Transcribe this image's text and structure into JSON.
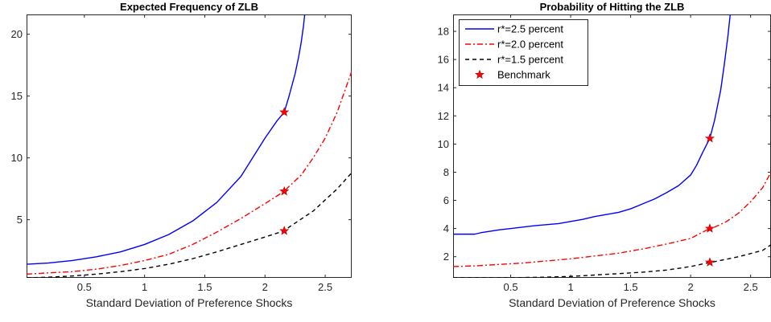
{
  "chart_data": [
    {
      "type": "line",
      "title": "Expected Frequency of ZLB",
      "xlabel": "Standard Deviation of Preference Shocks",
      "ylabel": "",
      "xlim": [
        0.02,
        2.72
      ],
      "ylim": [
        0.3,
        21.6
      ],
      "xticks": [
        0.5,
        1,
        1.5,
        2,
        2.5
      ],
      "yticks": [
        5,
        10,
        15,
        20
      ],
      "legend": null,
      "series": [
        {
          "name": "r*=2.5 percent",
          "color": "#0000ff",
          "dash": "solid",
          "x": [
            0.02,
            0.2,
            0.4,
            0.6,
            0.8,
            1.0,
            1.2,
            1.4,
            1.6,
            1.8,
            2.0,
            2.1,
            2.16,
            2.2,
            2.25,
            2.28,
            2.3,
            2.32,
            2.33
          ],
          "y": [
            1.4,
            1.5,
            1.7,
            2.0,
            2.4,
            3.0,
            3.8,
            4.9,
            6.4,
            8.5,
            11.6,
            13.0,
            13.7,
            15.0,
            16.8,
            18.2,
            19.3,
            20.7,
            21.6
          ]
        },
        {
          "name": "r*=2.0 percent",
          "color": "#ff0000",
          "dash": "dashdot",
          "x": [
            0.02,
            0.2,
            0.4,
            0.6,
            0.8,
            1.0,
            1.2,
            1.4,
            1.6,
            1.8,
            2.0,
            2.16,
            2.2,
            2.3,
            2.4,
            2.5,
            2.6,
            2.72
          ],
          "y": [
            0.6,
            0.7,
            0.8,
            1.0,
            1.3,
            1.7,
            2.2,
            3.0,
            4.0,
            5.1,
            6.3,
            7.3,
            7.7,
            8.6,
            10.0,
            11.6,
            13.7,
            17.0
          ]
        },
        {
          "name": "r*=1.5 percent",
          "color": "#000000",
          "dash": "dashed",
          "x": [
            0.02,
            0.2,
            0.4,
            0.6,
            0.8,
            1.0,
            1.2,
            1.4,
            1.6,
            1.8,
            2.0,
            2.16,
            2.2,
            2.4,
            2.6,
            2.72
          ],
          "y": [
            0.3,
            0.35,
            0.45,
            0.6,
            0.8,
            1.05,
            1.4,
            1.85,
            2.4,
            3.0,
            3.6,
            4.1,
            4.4,
            5.7,
            7.5,
            8.8
          ]
        }
      ],
      "markers": {
        "name": "Benchmark",
        "color": "#ff0000",
        "x": [
          2.16,
          2.16,
          2.16
        ],
        "y": [
          13.7,
          7.3,
          4.1
        ]
      }
    },
    {
      "type": "line",
      "title": "Probability of Hitting the ZLB",
      "xlabel": "Standard Deviation of Preference Shocks",
      "ylabel": "",
      "xlim": [
        0.02,
        2.67
      ],
      "ylim": [
        0.5,
        19.2
      ],
      "xticks": [
        0.5,
        1,
        1.5,
        2,
        2.5
      ],
      "yticks": [
        2,
        4,
        6,
        8,
        10,
        12,
        14,
        16,
        18
      ],
      "legend": "top-left",
      "series": [
        {
          "name": "r*=2.5 percent",
          "color": "#0000ff",
          "dash": "solid",
          "x": [
            0.02,
            0.2,
            0.25,
            0.4,
            0.6,
            0.7,
            0.9,
            1.0,
            1.1,
            1.2,
            1.3,
            1.4,
            1.5,
            1.6,
            1.7,
            1.8,
            1.9,
            2.0,
            2.05,
            2.1,
            2.16,
            2.2,
            2.25,
            2.28,
            2.31,
            2.33
          ],
          "y": [
            3.6,
            3.6,
            3.7,
            3.9,
            4.1,
            4.2,
            4.35,
            4.5,
            4.65,
            4.85,
            5.0,
            5.15,
            5.4,
            5.75,
            6.1,
            6.55,
            7.05,
            7.8,
            8.5,
            9.4,
            10.4,
            11.7,
            13.8,
            15.6,
            17.6,
            19.2
          ]
        },
        {
          "name": "r*=2.0 percent",
          "color": "#ff0000",
          "dash": "dashdot",
          "x": [
            0.02,
            0.2,
            0.4,
            0.6,
            0.8,
            1.0,
            1.2,
            1.4,
            1.6,
            1.8,
            2.0,
            2.16,
            2.2,
            2.3,
            2.4,
            2.5,
            2.6,
            2.67
          ],
          "y": [
            1.3,
            1.35,
            1.45,
            1.55,
            1.7,
            1.85,
            2.05,
            2.25,
            2.55,
            2.9,
            3.3,
            4.0,
            4.1,
            4.5,
            5.1,
            5.9,
            6.9,
            8.0
          ]
        },
        {
          "name": "r*=1.5 percent",
          "color": "#000000",
          "dash": "dashed",
          "x": [
            0.02,
            0.2,
            0.4,
            0.6,
            0.8,
            1.0,
            1.2,
            1.4,
            1.6,
            1.8,
            2.0,
            2.16,
            2.2,
            2.4,
            2.6,
            2.67
          ],
          "y": [
            0.5,
            0.5,
            0.5,
            0.52,
            0.55,
            0.6,
            0.7,
            0.8,
            0.9,
            1.05,
            1.3,
            1.6,
            1.65,
            2.0,
            2.45,
            2.85
          ]
        }
      ],
      "markers": {
        "name": "Benchmark",
        "color": "#ff0000",
        "x": [
          2.16,
          2.16,
          2.16
        ],
        "y": [
          10.4,
          4.0,
          1.6
        ]
      }
    }
  ]
}
